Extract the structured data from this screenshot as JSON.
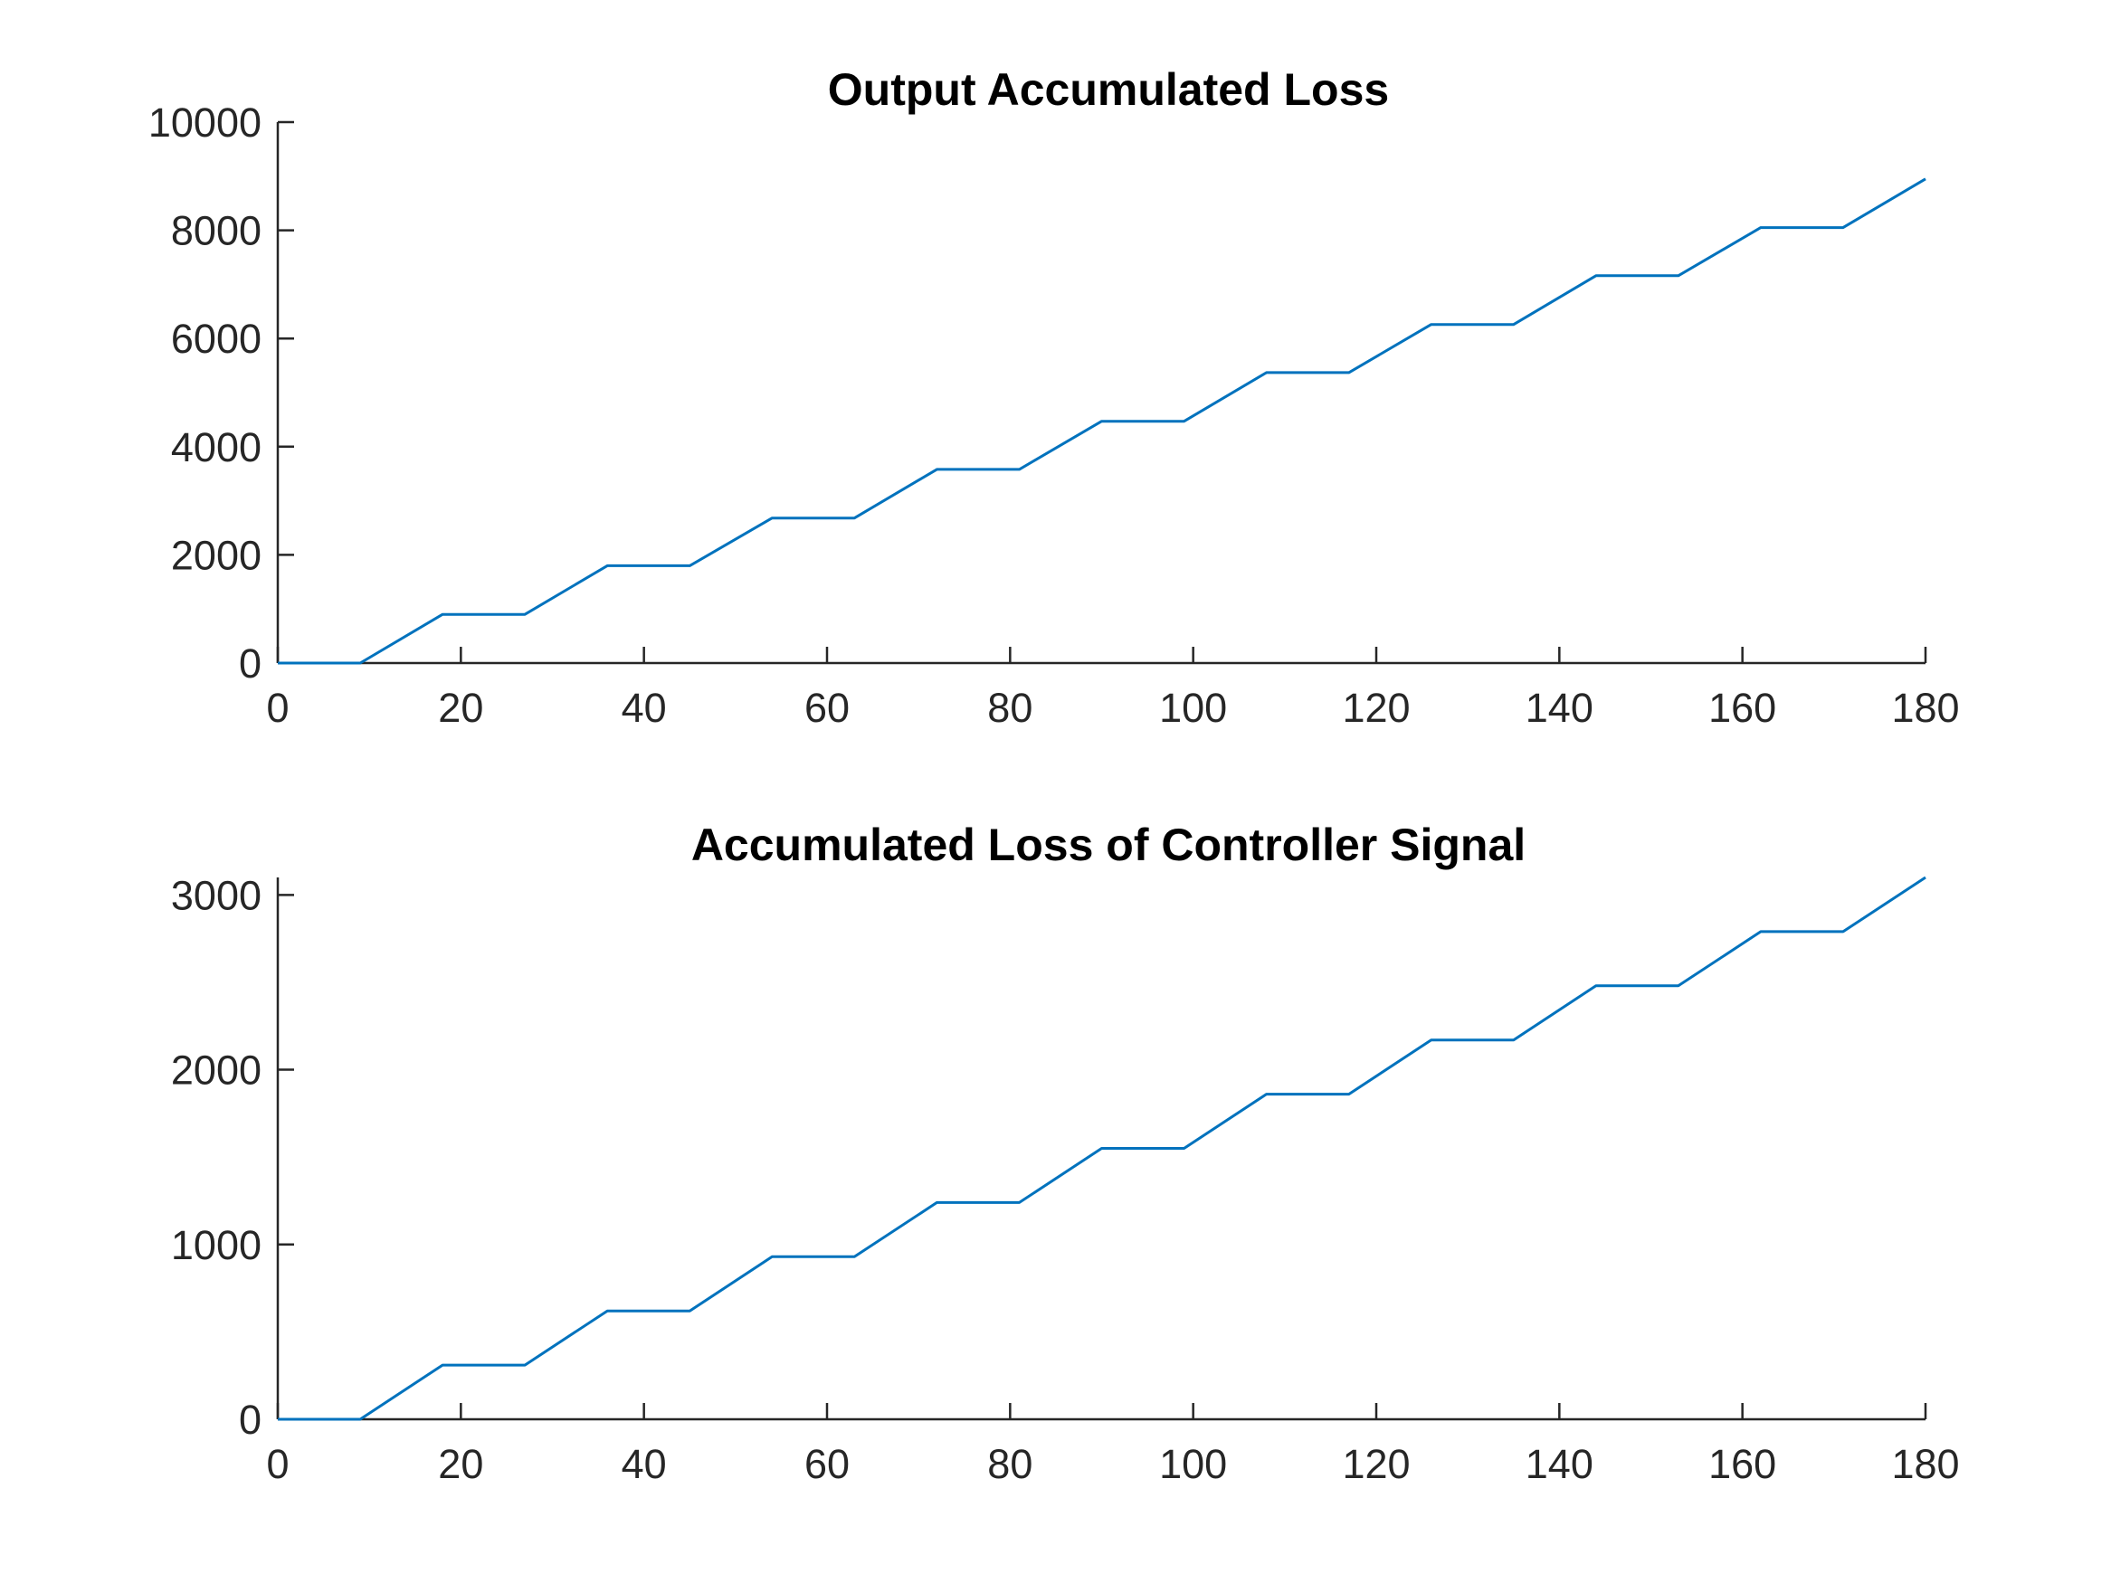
{
  "chart_data": [
    {
      "type": "line",
      "title": "Output Accumulated Loss",
      "xlabel": "",
      "ylabel": "",
      "xlim": [
        0,
        180
      ],
      "ylim": [
        0,
        10000
      ],
      "xticks": [
        "0",
        "20",
        "40",
        "60",
        "80",
        "100",
        "120",
        "140",
        "160",
        "180"
      ],
      "yticks": [
        "0",
        "2000",
        "4000",
        "6000",
        "8000",
        "10000"
      ],
      "grid": false,
      "series": [
        {
          "color": "#0072bd",
          "x": [
            0,
            9,
            18,
            27,
            36,
            45,
            54,
            63,
            72,
            81,
            90,
            99,
            108,
            117,
            126,
            135,
            144,
            153,
            162,
            171,
            180
          ],
          "y": [
            0,
            0,
            900,
            900,
            1800,
            1800,
            2680,
            2680,
            3580,
            3580,
            4470,
            4470,
            5370,
            5370,
            6260,
            6260,
            7160,
            7160,
            8050,
            8050,
            8950
          ]
        }
      ]
    },
    {
      "type": "line",
      "title": "Accumulated Loss of Controller Signal",
      "xlabel": "",
      "ylabel": "",
      "xlim": [
        0,
        180
      ],
      "ylim": [
        0,
        3100
      ],
      "xticks": [
        "0",
        "20",
        "40",
        "60",
        "80",
        "100",
        "120",
        "140",
        "160",
        "180"
      ],
      "yticks": [
        "0",
        "1000",
        "2000",
        "3000"
      ],
      "grid": false,
      "series": [
        {
          "color": "#0072bd",
          "x": [
            0,
            9,
            18,
            27,
            36,
            45,
            54,
            63,
            72,
            81,
            90,
            99,
            108,
            117,
            126,
            135,
            144,
            153,
            162,
            171,
            180
          ],
          "y": [
            0,
            0,
            310,
            310,
            620,
            620,
            930,
            930,
            1240,
            1240,
            1550,
            1550,
            1860,
            1860,
            2170,
            2170,
            2480,
            2480,
            2790,
            2790,
            3100
          ]
        }
      ]
    }
  ]
}
